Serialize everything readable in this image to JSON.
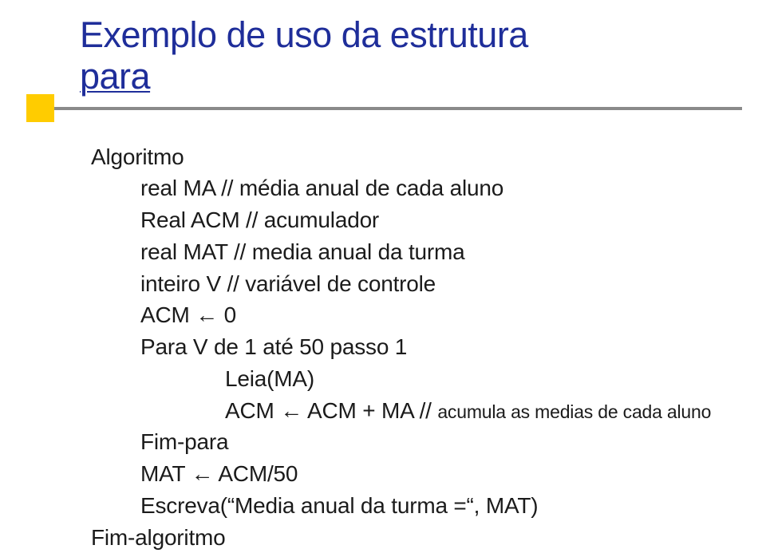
{
  "colors": {
    "title": "#1f2e9a",
    "accent": "#ffcc00",
    "divider": "#8a8a8a",
    "bodyText": "#1b1b1b"
  },
  "title": {
    "line1": "Exemplo de uso da estrutura",
    "line2": "para"
  },
  "algorithm": {
    "l1": "Algoritmo",
    "l2": "real MA // média anual de cada aluno",
    "l3": "Real ACM // acumulador",
    "l4": "real MAT // media anual da turma",
    "l5": "inteiro V // variável de controle",
    "l6": "ACM ← 0",
    "l7": "Para V de 1 até 50 passo 1",
    "l8": "Leia(MA)",
    "l9a": "ACM ← ACM + MA // ",
    "l9b": "acumula as medias de cada aluno",
    "l10": "Fim-para",
    "l11": "MAT ← ACM/50",
    "l12": "Escreva(“Media anual da turma =“, MAT)",
    "l13": "Fim-algoritmo"
  }
}
